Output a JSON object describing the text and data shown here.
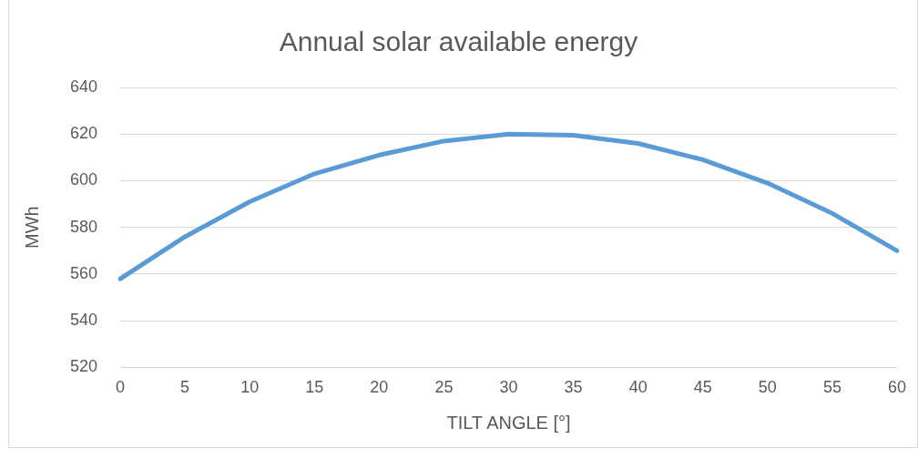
{
  "chart_data": {
    "type": "line",
    "title": "Annual solar available energy",
    "xlabel": "TILT ANGLE [°]",
    "ylabel": "MWh",
    "categories": [
      "0",
      "5",
      "10",
      "15",
      "20",
      "25",
      "30",
      "35",
      "40",
      "45",
      "50",
      "55",
      "60"
    ],
    "series": [
      {
        "color": "#5b9bd5",
        "values": [
          558,
          576,
          591,
          603,
          611,
          617,
          620,
          619.5,
          616,
          609,
          599,
          586,
          570
        ]
      }
    ],
    "ylim": [
      520,
      640
    ],
    "yticks": [
      520,
      540,
      560,
      580,
      600,
      620,
      640
    ],
    "grid": "y",
    "legend": false,
    "marker": "none",
    "line_style": "solid"
  }
}
